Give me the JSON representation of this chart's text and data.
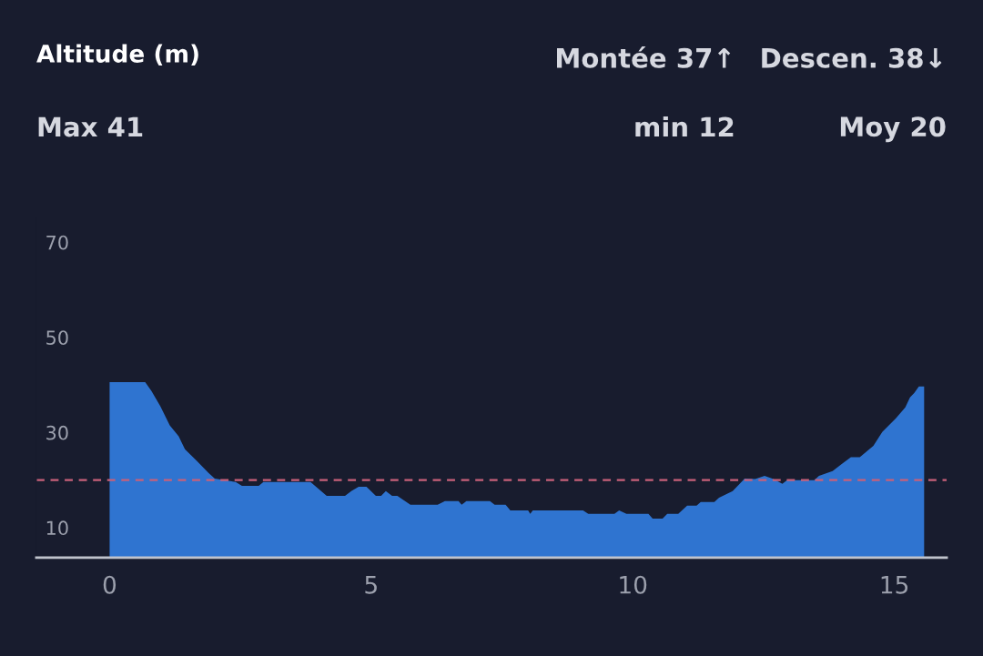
{
  "chart_data": {
    "type": "area",
    "title": "Altitude (m)",
    "annotations": [
      "Montée 37↑",
      "Descen. 38↓",
      "Max 41",
      "min 12",
      "Moy 20"
    ],
    "x": [
      0,
      0.68,
      0.8,
      0.97,
      1.15,
      1.32,
      1.44,
      1.67,
      1.89,
      2.01,
      2.41,
      2.53,
      2.85,
      2.94,
      3.84,
      4.15,
      4.5,
      4.62,
      4.76,
      4.91,
      5.09,
      5.19,
      5.28,
      5.4,
      5.5,
      5.75,
      6.27,
      6.41,
      6.67,
      6.73,
      6.82,
      7.27,
      7.36,
      7.57,
      7.66,
      8.0,
      8.04,
      8.09,
      9.05,
      9.15,
      9.65,
      9.74,
      9.88,
      10.3,
      10.38,
      10.57,
      10.66,
      10.87,
      11.04,
      11.22,
      11.3,
      11.56,
      11.65,
      11.91,
      12.14,
      12.34,
      12.52,
      12.69,
      12.86,
      12.95,
      13.47,
      13.56,
      13.82,
      14.0,
      14.17,
      14.34,
      14.6,
      14.77,
      15.03,
      15.21,
      15.3,
      15.38,
      15.47,
      15.57
    ],
    "series": [
      {
        "color": "#2f74d0",
        "values": [
          40.6,
          40.6,
          38.7,
          35.5,
          31.5,
          29.2,
          26.5,
          24,
          21.5,
          20.3,
          19.6,
          18.8,
          18.8,
          19.6,
          19.6,
          16.7,
          16.7,
          17.7,
          18.6,
          18.6,
          16.7,
          16.7,
          17.7,
          16.7,
          16.7,
          14.8,
          14.8,
          15.6,
          15.6,
          14.8,
          15.6,
          15.6,
          14.8,
          14.8,
          13.6,
          13.6,
          12.9,
          13.6,
          13.6,
          12.9,
          12.9,
          13.6,
          12.9,
          12.9,
          11.9,
          11.9,
          12.9,
          12.9,
          14.6,
          14.6,
          15.4,
          15.4,
          16.3,
          17.7,
          20.3,
          20.2,
          20.9,
          20.2,
          19.2,
          20,
          20,
          20.9,
          21.9,
          23.4,
          24.8,
          24.8,
          27.2,
          30.1,
          33,
          35.3,
          37.4,
          38.3,
          39.7,
          39.7
        ]
      }
    ],
    "xlim": [
      -1.4,
      16
    ],
    "xticks": [
      0,
      5,
      10,
      15
    ],
    "ylim": [
      3.7,
      75
    ],
    "yticks": [
      10,
      30,
      50,
      70
    ],
    "ref_lines": [
      {
        "axis": "y",
        "value": 20,
        "color": "#c8607a",
        "line_style": "dashed"
      }
    ],
    "grid": false,
    "legend": false
  }
}
